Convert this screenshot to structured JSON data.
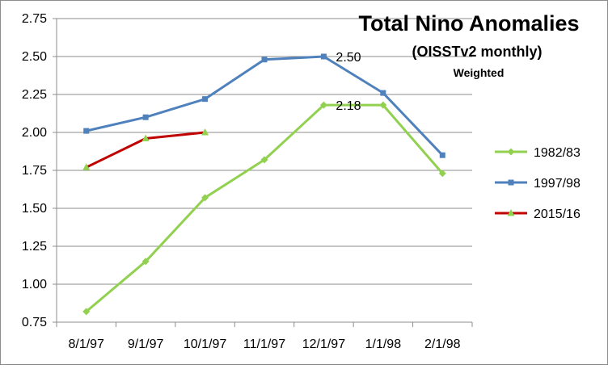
{
  "chart_data": {
    "type": "line",
    "title": "Total Nino Anomalies",
    "subtitle": "(OISSTv2 monthly)",
    "subtitle2": "Weighted",
    "categories": [
      "8/1/97",
      "9/1/97",
      "10/1/97",
      "11/1/97",
      "12/1/97",
      "1/1/98",
      "2/1/98"
    ],
    "ylim": [
      0.75,
      2.75
    ],
    "yticks": [
      "0.75",
      "1.00",
      "1.25",
      "1.50",
      "1.75",
      "2.00",
      "2.25",
      "2.50",
      "2.75"
    ],
    "grid": true,
    "legend_position": "right",
    "series": [
      {
        "name": "1982/83",
        "color": "#92d050",
        "marker": "diamond",
        "values": [
          0.82,
          1.15,
          1.57,
          1.82,
          2.18,
          2.18,
          1.73
        ]
      },
      {
        "name": "1997/98",
        "color": "#4f81bd",
        "marker": "square",
        "values": [
          2.01,
          2.1,
          2.22,
          2.48,
          2.5,
          2.26,
          1.85
        ]
      },
      {
        "name": "2015/16",
        "color": "#c00000",
        "marker": "triangle",
        "values": [
          1.77,
          1.96,
          2.0,
          null,
          null,
          null,
          null
        ]
      }
    ],
    "annotations": [
      {
        "series": 1,
        "index": 4,
        "text": "2.50"
      },
      {
        "series": 0,
        "index": 4,
        "text": "2.18"
      }
    ]
  }
}
